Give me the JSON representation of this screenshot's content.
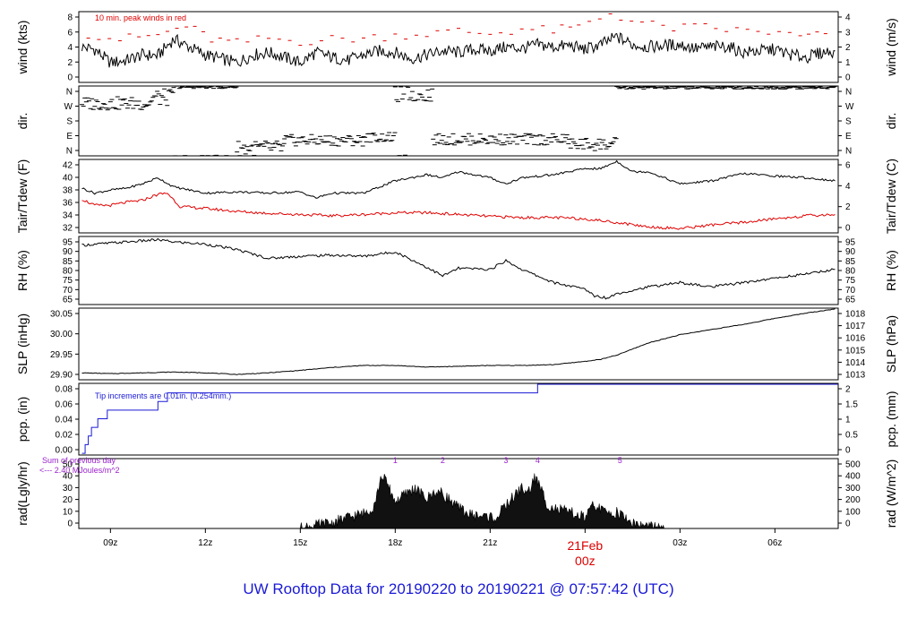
{
  "title": "UW Rooftop Data for 20190220  to  20190221 @ 07:57:42  (UTC)",
  "colors": {
    "trace": "#000000",
    "dewpoint": "#e00000",
    "peak": "#e00000",
    "precip": "#1a1ad6",
    "annot": "#9a22cc",
    "date": "#dd0000"
  },
  "chart_data": {
    "type": "line",
    "x_axis": {
      "ticks": [
        "09z",
        "12z",
        "15z",
        "18z",
        "21z",
        "03z",
        "06z"
      ],
      "tick_hours": [
        9,
        12,
        15,
        18,
        21,
        27,
        30
      ],
      "date_label": "21Feb",
      "date_sublabel": "00z",
      "date_hour": 24,
      "range_hours": [
        8.0,
        32.0
      ]
    },
    "panels": [
      {
        "id": "wind",
        "type": "line",
        "ylabel_left": "wind (kts)",
        "ylabel_right": "wind (m/s)",
        "left_ticks": [
          "8",
          "6",
          "4",
          "2",
          "0"
        ],
        "right_ticks": [
          "4",
          "3",
          "2",
          "1",
          "0"
        ],
        "ylim": [
          0,
          9
        ],
        "annotation": "10 min. peak winds in red",
        "series": [
          {
            "name": "wind",
            "x": [
              8.1,
              8.5,
              9,
              9.5,
              10,
              10.5,
              11,
              11.5,
              12,
              12.5,
              13,
              13.5,
              14,
              14.5,
              15,
              15.5,
              16,
              16.5,
              17,
              17.5,
              18,
              18.5,
              19,
              19.5,
              20,
              20.5,
              21,
              21.5,
              22,
              22.5,
              23,
              23.5,
              24,
              24.5,
              25,
              25.5,
              26,
              26.5,
              27,
              27.5,
              28,
              28.5,
              29,
              29.5,
              30,
              30.5,
              31,
              31.5,
              31.9
            ],
            "y": [
              4.5,
              4.2,
              2.5,
              2.8,
              3.5,
              3.4,
              5.5,
              4.5,
              3.5,
              3.0,
              2.5,
              3.5,
              3.8,
              3.2,
              2.5,
              3.8,
              3.2,
              2.8,
              3.5,
              4.0,
              3.8,
              3.0,
              3.5,
              4.0,
              3.8,
              4.2,
              4.0,
              4.5,
              4.3,
              4.8,
              4.5,
              4.7,
              4.2,
              4.8,
              5.8,
              4.8,
              4.5,
              4.7,
              4.8,
              4.3,
              4.5,
              4.6,
              3.8,
              4.0,
              4.2,
              3.5,
              3.2,
              3.8,
              4.0
            ]
          },
          {
            "name": "peak",
            "x": [
              8.3,
              9.3,
              10.5,
              11.4,
              12.2,
              13.0,
              14.0,
              15.0,
              16.0,
              17.0,
              18.0,
              19.0,
              20.0,
              21.0,
              22.0,
              23.0,
              23.8,
              24.8,
              25.8,
              26.8,
              27.8,
              28.8,
              29.8,
              30.8,
              31.6
            ],
            "y": [
              6.2,
              5.5,
              6.0,
              7.2,
              5.5,
              5.0,
              5.6,
              5.2,
              5.5,
              5.6,
              6.0,
              6.2,
              6.5,
              6.2,
              6.8,
              6.6,
              7.0,
              8.8,
              7.5,
              6.9,
              7.0,
              6.6,
              6.4,
              5.8,
              6.2
            ]
          }
        ]
      },
      {
        "id": "dir",
        "type": "scatter",
        "ylabel_left": "dir.",
        "ylabel_right": "dir.",
        "left_ticks": [
          "N",
          "W",
          "S",
          "E",
          "N"
        ],
        "right_ticks": [
          "N",
          "W",
          "S",
          "E",
          "N"
        ],
        "ylim": [
          0,
          360
        ]
      },
      {
        "id": "temp",
        "type": "line",
        "ylabel_left": "Tair/Tdew (F)",
        "ylabel_right": "Tair/Tdew (C)",
        "left_ticks": [
          "42",
          "40",
          "38",
          "36",
          "34",
          "32"
        ],
        "right_ticks": [
          "6",
          "4",
          "2",
          "0"
        ],
        "ylim": [
          31.5,
          43.5
        ],
        "series": [
          {
            "name": "Tair",
            "x": [
              8.1,
              8.5,
              9,
              9.5,
              10,
              10.5,
              11,
              11.5,
              12,
              13,
              14,
              15,
              15.5,
              16,
              17,
              18,
              19,
              19.5,
              20,
              21,
              21.5,
              22,
              23,
              24,
              24.5,
              25,
              25.5,
              26,
              27,
              28,
              29,
              30,
              31,
              31.9
            ],
            "y": [
              38.8,
              38.0,
              38.5,
              38.8,
              39.5,
              40.5,
              39.0,
              38.5,
              38.0,
              38.2,
              38.0,
              38.2,
              37.2,
              38.0,
              38.0,
              40.0,
              41.0,
              40.5,
              41.5,
              40.5,
              39.5,
              40.5,
              41.0,
              42.0,
              42.0,
              43.2,
              41.5,
              41.5,
              39.5,
              40.0,
              41.2,
              40.8,
              40.5,
              40.0
            ]
          },
          {
            "name": "Tdew",
            "x": [
              8.1,
              8.5,
              9,
              9.5,
              10,
              10.5,
              10.8,
              11.2,
              12,
              13,
              14,
              15,
              16,
              17,
              18,
              19,
              20,
              21,
              22,
              23,
              24,
              25,
              26,
              27,
              28,
              29,
              30,
              31,
              31.9
            ],
            "y": [
              37.0,
              36.0,
              36.0,
              36.5,
              36.8,
              37.8,
              38.0,
              35.8,
              35.5,
              35.0,
              34.7,
              34.5,
              34.3,
              34.5,
              34.8,
              34.8,
              34.5,
              34.2,
              34.0,
              34.0,
              33.8,
              33.2,
              32.5,
              32.2,
              32.8,
              33.2,
              33.8,
              34.3,
              34.5
            ]
          }
        ]
      },
      {
        "id": "rh",
        "type": "line",
        "ylabel_left": "RH (%)",
        "ylabel_right": "RH (%)",
        "left_ticks": [
          "95",
          "90",
          "85",
          "80",
          "75",
          "70",
          "65"
        ],
        "right_ticks": [
          "95",
          "90",
          "85",
          "80",
          "75",
          "70",
          "65"
        ],
        "ylim": [
          64,
          95
        ],
        "series": [
          {
            "name": "RH",
            "x": [
              8.1,
              9,
              10,
              10.5,
              11,
              12,
              13,
              14,
              15,
              16,
              17,
              18,
              19,
              19.5,
              20,
              21,
              21.5,
              22,
              23,
              24,
              24.3,
              24.7,
              25,
              26,
              27,
              28,
              29,
              30,
              31,
              31.9
            ],
            "y": [
              91,
              92,
              93,
              93.5,
              92.5,
              91.5,
              89,
              85,
              86,
              86.5,
              86,
              88,
              81,
              77,
              80.5,
              80,
              84,
              80,
              74,
              71,
              68,
              67,
              69,
              72,
              74,
              72,
              74,
              76,
              78,
              80
            ]
          }
        ]
      },
      {
        "id": "slp",
        "type": "line",
        "ylabel_left": "SLP (inHg)",
        "ylabel_right": "SLP (hPa)",
        "left_ticks": [
          "30.05",
          "30.00",
          "29.95",
          "29.90"
        ],
        "right_ticks": [
          "1018",
          "1017",
          "1016",
          "1015",
          "1014",
          "1013"
        ],
        "ylim": [
          29.895,
          30.07
        ],
        "series": [
          {
            "name": "SLP",
            "x": [
              8.1,
              9,
              10,
              11,
              12,
              13,
              14,
              15,
              16,
              17,
              18,
              19,
              20,
              21,
              22,
              23,
              24,
              24.5,
              25,
              25.5,
              26,
              27,
              28,
              29,
              30,
              31,
              31.9
            ],
            "y": [
              29.912,
              29.91,
              29.912,
              29.914,
              29.912,
              29.908,
              29.912,
              29.918,
              29.925,
              29.93,
              29.93,
              29.926,
              29.928,
              29.93,
              29.93,
              29.932,
              29.94,
              29.945,
              29.955,
              29.97,
              29.985,
              30.005,
              30.018,
              30.03,
              30.045,
              30.058,
              30.068
            ]
          }
        ]
      },
      {
        "id": "pcp",
        "type": "line",
        "ylabel_left": "pcp. (in)",
        "ylabel_right": "pcp. (mm)",
        "left_ticks": [
          "0.08",
          "0.06",
          "0.04",
          "0.02",
          "0.00"
        ],
        "right_ticks": [
          "2",
          "1.5",
          "1",
          "0.5",
          "0"
        ],
        "ylim": [
          -0.002,
          0.081
        ],
        "annotation": "Tip increments are 0.01in. (0.254mm.)",
        "series": [
          {
            "name": "precip",
            "x": [
              8.1,
              8.2,
              8.3,
              8.4,
              8.6,
              8.9,
              10.5,
              10.8,
              22.5,
              32.0
            ],
            "y": [
              0.0,
              0.01,
              0.02,
              0.03,
              0.04,
              0.05,
              0.06,
              0.07,
              0.08,
              0.08
            ]
          }
        ]
      },
      {
        "id": "rad",
        "type": "area",
        "ylabel_left": "rad(Lgly/hr)",
        "ylabel_right": "rad (W/m^2)",
        "left_ticks": [
          "50",
          "40",
          "30",
          "20",
          "10",
          "0"
        ],
        "right_ticks": [
          "500",
          "400",
          "300",
          "200",
          "100",
          "0"
        ],
        "ylim": [
          0,
          52
        ],
        "annotations": [
          "Sum of previous day",
          "<--- 2.40 MJoules/m^2"
        ],
        "markers": [
          {
            "label": "1",
            "x": 18.0
          },
          {
            "label": "2",
            "x": 19.5
          },
          {
            "label": "3",
            "x": 21.5
          },
          {
            "label": "4",
            "x": 22.5
          },
          {
            "label": "5",
            "x": 25.1
          }
        ],
        "series": [
          {
            "name": "radiation",
            "x": [
              15.0,
              15.5,
              16.0,
              16.5,
              17.0,
              17.3,
              17.6,
              17.8,
              18.0,
              18.3,
              18.6,
              19.0,
              19.3,
              19.6,
              20.0,
              20.4,
              20.8,
              21.2,
              21.6,
              22.0,
              22.2,
              22.4,
              22.6,
              22.8,
              23.1,
              23.5,
              24.0,
              24.3,
              24.6,
              25.0,
              25.5,
              26.0,
              26.5
            ],
            "y": [
              0,
              2,
              4,
              8,
              11,
              16,
              40,
              30,
              20,
              25,
              30,
              22,
              28,
              24,
              15,
              10,
              9,
              8,
              20,
              30,
              26,
              38,
              30,
              18,
              14,
              12,
              8,
              18,
              12,
              12,
              4,
              1,
              0
            ]
          }
        ]
      }
    ]
  }
}
